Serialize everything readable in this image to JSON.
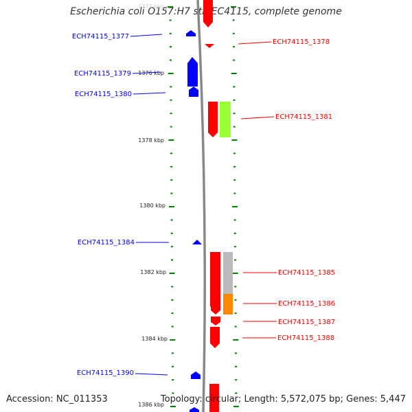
{
  "title": "Escherichia coli O157:H7 str. EC4115, complete genome",
  "accession": "Accession: NC_011353",
  "summary": "Topology: circular; Length: 5,572,075 bp; Genes: 5,447",
  "colors": {
    "forward": "#ff0000",
    "reverse": "#0000ff",
    "backbone": "#888888",
    "tick": "#008000",
    "gene_green": "#99ff33",
    "gene_grey": "#bbbbbb",
    "gene_orange": "#ff8800"
  },
  "scale_labels": [
    "1374 kbp",
    "1376 kbp",
    "1378 kbp",
    "1380 kbp",
    "1382 kbp",
    "1384 kbp",
    "1386 kbp"
  ],
  "genes_left": [
    {
      "label": "ECH74115_1377"
    },
    {
      "label": "ECH74115_1379"
    },
    {
      "label": "ECH74115_1380"
    },
    {
      "label": "ECH74115_1384"
    },
    {
      "label": "ECH74115_1390"
    }
  ],
  "genes_right": [
    {
      "label": "ECH74115_1378"
    },
    {
      "label": "ECH74115_1381"
    },
    {
      "label": "ECH74115_1385"
    },
    {
      "label": "ECH74115_1386"
    },
    {
      "label": "ECH74115_1387"
    },
    {
      "label": "ECH74115_1388"
    }
  ]
}
